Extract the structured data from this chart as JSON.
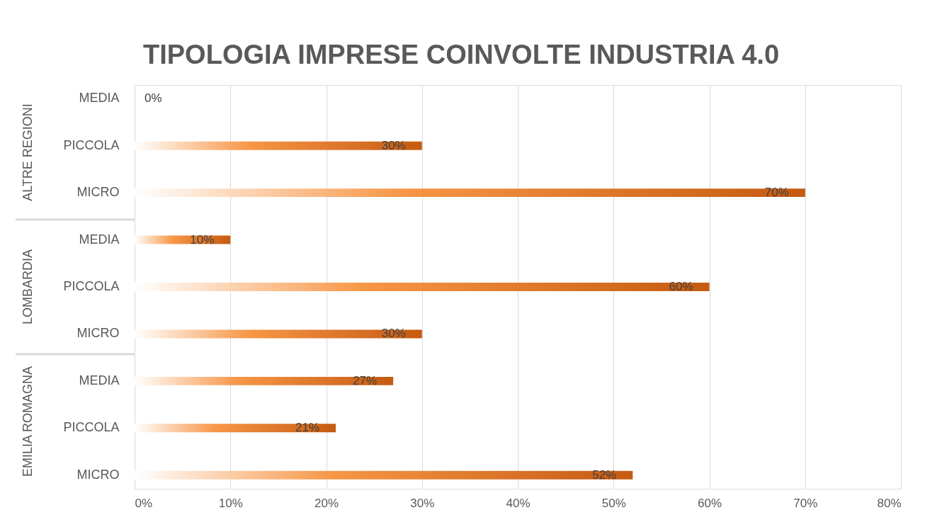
{
  "chart_data": {
    "type": "bar",
    "orientation": "horizontal",
    "title": "TIPOLOGIA IMPRESE COINVOLTE INDUSTRIA 4.0",
    "categories": [
      "MEDIA",
      "PICCOLA",
      "MICRO",
      "MEDIA",
      "PICCOLA",
      "MICRO",
      "MEDIA",
      "PICCOLA",
      "MICRO"
    ],
    "values": [
      0,
      30,
      70,
      10,
      60,
      30,
      27,
      21,
      52
    ],
    "value_labels": [
      "0%",
      "30%",
      "70%",
      "10%",
      "60%",
      "30%",
      "27%",
      "21%",
      "52%"
    ],
    "color": "#c55a11",
    "annotations": [
      "ALTRE REGIONI",
      "LOMBARDIA",
      "EMILIA ROMAGNA"
    ],
    "xlim": [
      0,
      80
    ],
    "xticks": [
      {
        "value": 0,
        "label": "0%"
      },
      {
        "value": 10,
        "label": "10%"
      },
      {
        "value": 20,
        "label": "20%"
      },
      {
        "value": 30,
        "label": "30%"
      },
      {
        "value": 40,
        "label": "40%"
      },
      {
        "value": 50,
        "label": "50%"
      },
      {
        "value": 60,
        "label": "60%"
      },
      {
        "value": 70,
        "label": "70%"
      },
      {
        "value": 80,
        "label": "80%"
      }
    ],
    "grid": "x"
  }
}
